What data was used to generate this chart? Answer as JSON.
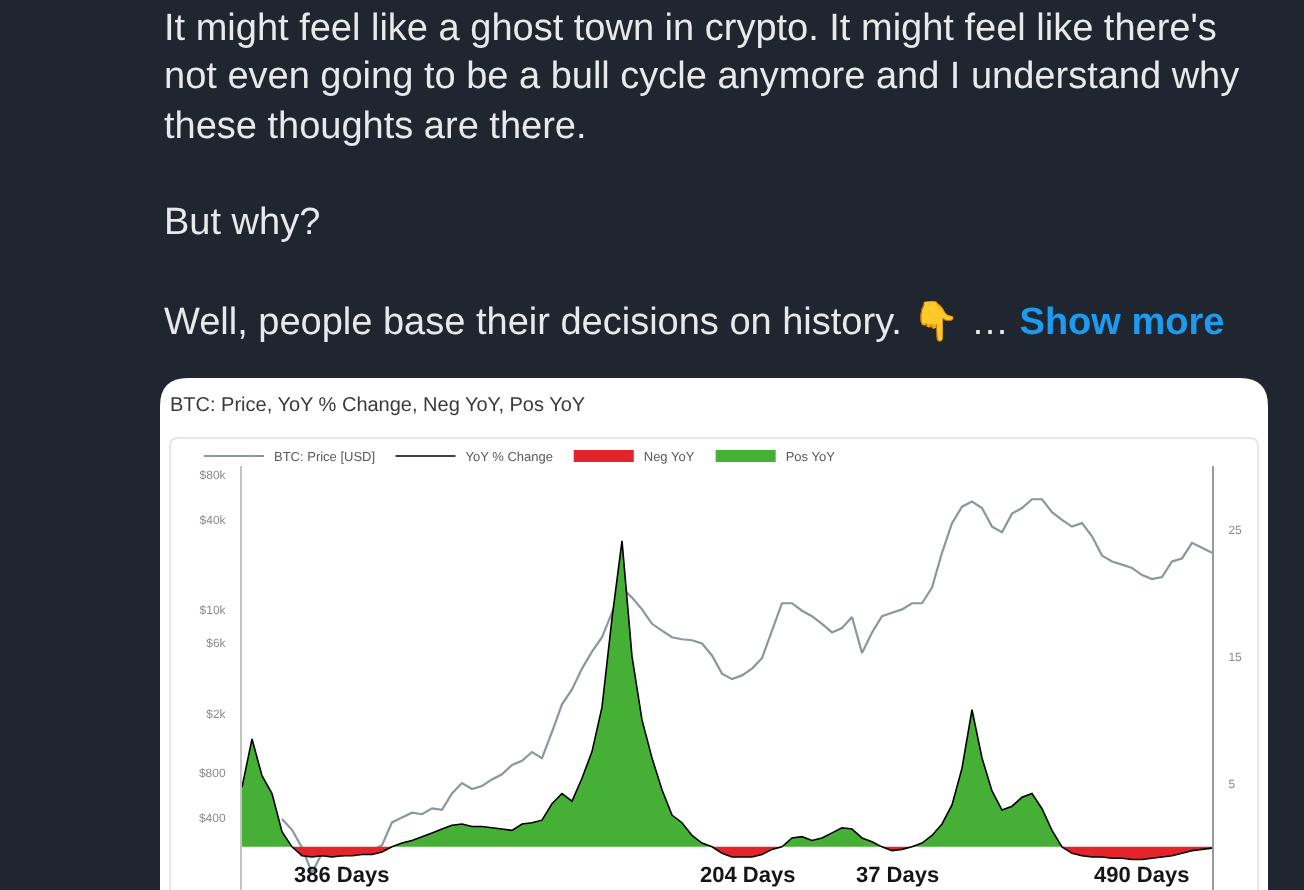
{
  "chart_data": {
    "type": "line",
    "title": "BTC: Price, YoY % Change, Neg YoY, Pos YoY",
    "categories": [
      null,
      null,
      null,
      null,
      null,
      null,
      null,
      null,
      null,
      null,
      null,
      null,
      null,
      null,
      null,
      null,
      null,
      null,
      null,
      null,
      null,
      null,
      null,
      null,
      null,
      null,
      null,
      null,
      null,
      null,
      null,
      null,
      null,
      null,
      null,
      null,
      null,
      null,
      null,
      null,
      null,
      null,
      null,
      null,
      null,
      null,
      null,
      null,
      null,
      null,
      null,
      null,
      null,
      null,
      null,
      null,
      null,
      null,
      null,
      null,
      null,
      null,
      null,
      null,
      null,
      null,
      null,
      null,
      null,
      null,
      null,
      null,
      null,
      null,
      null,
      null,
      null,
      null,
      null,
      null,
      null,
      null,
      null,
      null,
      null,
      null,
      null,
      null,
      null,
      null,
      null,
      null,
      null,
      null,
      null,
      null,
      null,
      null
    ],
    "series": [
      {
        "name": "BTC: Price [USD]",
        "color": "#8a96a0",
        "values": [
          null,
          null,
          null,
          null,
          390,
          330,
          250,
          170,
          230,
          230,
          220,
          240,
          230,
          240,
          260,
          370,
          400,
          430,
          420,
          460,
          450,
          580,
          680,
          620,
          650,
          720,
          780,
          900,
          960,
          1100,
          1000,
          1500,
          2300,
          2900,
          4000,
          5200,
          6500,
          9500,
          14000,
          12000,
          10000,
          8000,
          7200,
          6500,
          6300,
          6200,
          5900,
          4900,
          3700,
          3400,
          3600,
          4000,
          4700,
          7200,
          11000,
          11000,
          9800,
          9000,
          8000,
          7000,
          7500,
          8900,
          5100,
          7000,
          9000,
          9500,
          10000,
          11000,
          11000,
          14000,
          24000,
          38000,
          49000,
          53000,
          48000,
          36000,
          33000,
          44000,
          48000,
          55000,
          55000,
          45000,
          40000,
          36000,
          38000,
          31000,
          23000,
          21000,
          20000,
          19000,
          17000,
          16000,
          16500,
          21000,
          22000,
          28000,
          26000,
          24000
        ]
      },
      {
        "name": "YoY % Change",
        "color": "#000000",
        "axis": "y2",
        "values": [
          4.7,
          8.5,
          5.6,
          4.2,
          1.2,
          0,
          -0.7,
          -0.8,
          -0.7,
          -0.8,
          -0.7,
          -0.7,
          -0.6,
          -0.6,
          -0.4,
          0,
          0.3,
          0.5,
          0.8,
          1.1,
          1.4,
          1.7,
          1.8,
          1.6,
          1.6,
          1.5,
          1.4,
          1.3,
          1.8,
          1.9,
          2.1,
          3.4,
          4.2,
          3.6,
          5.4,
          7.5,
          11.0,
          18.0,
          24.1,
          15.0,
          10.0,
          7.0,
          4.5,
          2.5,
          1.9,
          0.9,
          0.3,
          0,
          -0.5,
          -0.8,
          -0.8,
          -0.8,
          -0.6,
          -0.2,
          0,
          0.7,
          0.8,
          0.5,
          0.7,
          1.1,
          1.5,
          1.4,
          0.7,
          0.4,
          0,
          -0.3,
          -0.2,
          0,
          0.3,
          0.9,
          1.8,
          3.3,
          6.2,
          10.8,
          7.0,
          4.4,
          2.9,
          3.2,
          3.9,
          4.2,
          3.0,
          1.3,
          0,
          -0.5,
          -0.7,
          -0.8,
          -0.8,
          -0.9,
          -0.9,
          -1.0,
          -1.0,
          -0.9,
          -0.8,
          -0.7,
          -0.5,
          -0.3,
          -0.2,
          -0.1
        ]
      },
      {
        "name": "Neg YoY",
        "type": "area",
        "color": "#e3242b",
        "axis": "y2",
        "values": [
          null,
          null,
          null,
          null,
          null,
          0,
          -0.7,
          -0.8,
          -0.7,
          -0.8,
          -0.7,
          -0.7,
          -0.6,
          -0.6,
          -0.4,
          0,
          null,
          null,
          null,
          null,
          null,
          null,
          null,
          null,
          null,
          null,
          null,
          null,
          null,
          null,
          null,
          null,
          null,
          null,
          null,
          null,
          null,
          null,
          null,
          null,
          null,
          null,
          null,
          null,
          null,
          null,
          null,
          0,
          -0.5,
          -0.8,
          -0.8,
          -0.8,
          -0.6,
          -0.2,
          0,
          null,
          null,
          null,
          null,
          null,
          null,
          null,
          null,
          null,
          0,
          -0.3,
          -0.2,
          0,
          null,
          null,
          null,
          null,
          null,
          null,
          null,
          null,
          null,
          null,
          null,
          null,
          null,
          null,
          0,
          -0.5,
          -0.7,
          -0.8,
          -0.8,
          -0.9,
          -0.9,
          -1.0,
          -1.0,
          -0.9,
          -0.8,
          -0.7,
          -0.5,
          -0.3,
          -0.2,
          -0.1
        ]
      },
      {
        "name": "Pos YoY",
        "type": "area",
        "color": "#45b035",
        "axis": "y2",
        "values": [
          4.7,
          8.5,
          5.6,
          4.2,
          1.2,
          0,
          null,
          null,
          null,
          null,
          null,
          null,
          null,
          null,
          null,
          0,
          0.3,
          0.5,
          0.8,
          1.1,
          1.4,
          1.7,
          1.8,
          1.6,
          1.6,
          1.5,
          1.4,
          1.3,
          1.8,
          1.9,
          2.1,
          3.4,
          4.2,
          3.6,
          5.4,
          7.5,
          11.0,
          18.0,
          24.1,
          15.0,
          10.0,
          7.0,
          4.5,
          2.5,
          1.9,
          0.9,
          0.3,
          0,
          null,
          null,
          null,
          null,
          null,
          null,
          0,
          0.7,
          0.8,
          0.5,
          0.7,
          1.1,
          1.5,
          1.4,
          0.7,
          0.4,
          0,
          null,
          null,
          0,
          0.3,
          0.9,
          1.8,
          3.3,
          6.2,
          10.8,
          7.0,
          4.4,
          2.9,
          3.2,
          3.9,
          4.2,
          3.0,
          1.3,
          0,
          null,
          null,
          null,
          null,
          null,
          null,
          null,
          null,
          null,
          null,
          null,
          null,
          null,
          null,
          null
        ]
      }
    ],
    "log": "y",
    "ylim": [
      130,
      92000
    ],
    "yticks": [
      {
        "value": 80000,
        "label": "$80k"
      },
      {
        "value": 40000,
        "label": "$40k"
      },
      {
        "value": 10000,
        "label": "$10k"
      },
      {
        "value": 6000,
        "label": "$6k"
      },
      {
        "value": 2000,
        "label": "$2k"
      },
      {
        "value": 800,
        "label": "$800"
      },
      {
        "value": 400,
        "label": "$400"
      }
    ],
    "y2lim": [
      -3.4,
      30
    ],
    "y2ticks": [
      5,
      15,
      25
    ],
    "legend": "top left",
    "line_style": "solid",
    "annotations": [
      "It might feel like a ghost town in crypto. It might feel like there's not even going to be a bull cycle anymore and I understand why these thoughts are there.",
      "But why?",
      "Well, people base their decisions on history. 👇 …",
      "Show more",
      {
        "text": "386 Days"
      },
      {
        "text": "204 Days"
      },
      {
        "text": "37 Days"
      },
      {
        "text": "490 Days"
      }
    ]
  }
}
